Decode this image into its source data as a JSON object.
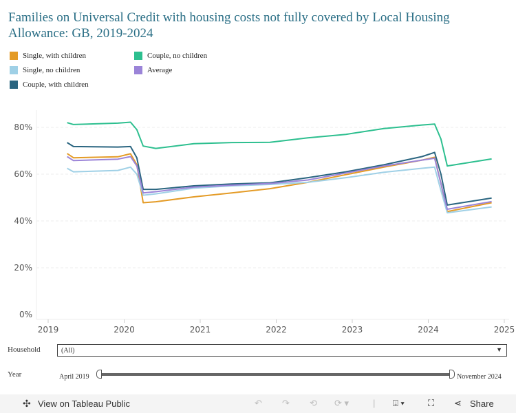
{
  "title": "Families on Universal Credit with housing costs not fully covered by Local Housing Allowance: GB, 2019-2024",
  "filters": {
    "household_label": "Household",
    "household_value": "(All)",
    "year_label": "Year",
    "year_start": "April 2019",
    "year_end": "November 2024"
  },
  "toolbar": {
    "view_label": "View on Tableau Public",
    "share_label": "Share"
  },
  "chart_data": {
    "type": "line",
    "title": "Families on Universal Credit with housing costs not fully covered by Local Housing Allowance: GB, 2019-2024",
    "ylim": [
      0,
      85
    ],
    "xlim": [
      2018.9,
      2025.1
    ],
    "y_ticks": [
      "0%",
      "20%",
      "40%",
      "60%",
      "80%"
    ],
    "y_tick_values": [
      0,
      20,
      40,
      60,
      80
    ],
    "x_ticks": [
      "2019",
      "2020",
      "2021",
      "2022",
      "2023",
      "2024",
      "2025"
    ],
    "grid": true,
    "legend_position": "top-left",
    "x": [
      "2019-04",
      "2019-05",
      "2019-12",
      "2020-02",
      "2020-03",
      "2020-04",
      "2020-06",
      "2020-12",
      "2021-06",
      "2021-12",
      "2022-06",
      "2022-12",
      "2023-06",
      "2023-12",
      "2024-02",
      "2024-03",
      "2024-04",
      "2024-11"
    ],
    "series": [
      {
        "name": "Single, with children",
        "color": "#e49b26",
        "values": [
          68.8,
          67,
          67.4,
          68.7,
          64,
          47.8,
          48.2,
          50.3,
          52,
          53.8,
          56.5,
          59.8,
          63,
          66,
          67.2,
          56,
          44,
          47.8
        ]
      },
      {
        "name": "Single, no children",
        "color": "#9fd0e6",
        "values": [
          62.5,
          61,
          61.6,
          63,
          60,
          51,
          51.6,
          54,
          55,
          55.6,
          56.5,
          58.5,
          60.8,
          62.5,
          63,
          53,
          43.5,
          46
        ]
      },
      {
        "name": "Couple, with children",
        "color": "#2a6580",
        "values": [
          73.5,
          71.8,
          71.6,
          71.8,
          67,
          53.5,
          53.5,
          55,
          55.8,
          56.3,
          58.5,
          61,
          64,
          67.5,
          69.3,
          60,
          46.8,
          49.8
        ]
      },
      {
        "name": "Couple, no children",
        "color": "#2dbf8f",
        "values": [
          82,
          81.2,
          81.8,
          82.2,
          79,
          72,
          71,
          73,
          73.5,
          73.6,
          75.5,
          77,
          79.5,
          81,
          81.4,
          75,
          63.5,
          66.5
        ]
      },
      {
        "name": "Average",
        "color": "#9b84d8",
        "values": [
          67.5,
          65.8,
          66.4,
          67.5,
          63.5,
          52,
          52.5,
          54.5,
          55.3,
          56,
          57.5,
          60.5,
          63.5,
          66,
          66.8,
          56,
          45,
          48.3
        ]
      }
    ]
  }
}
